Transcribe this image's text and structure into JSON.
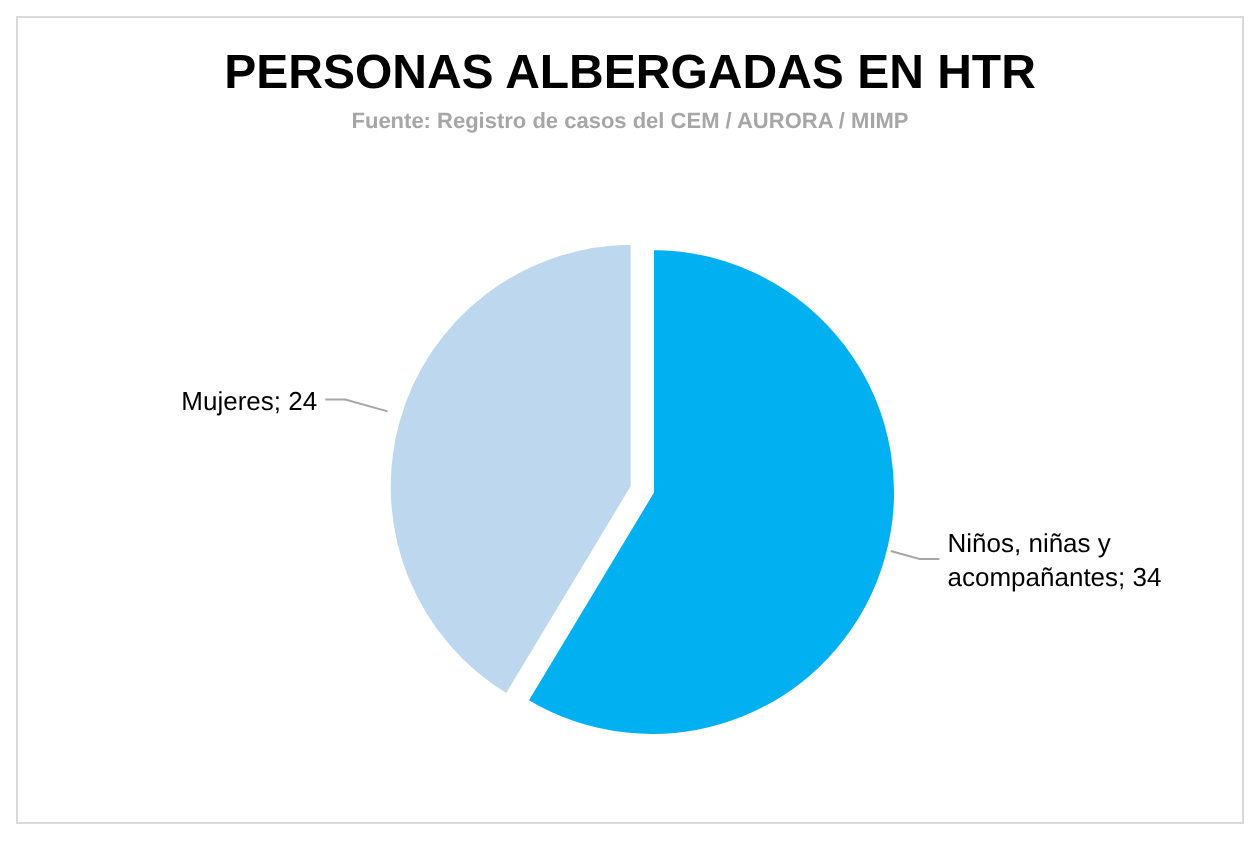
{
  "chart_data": {
    "type": "pie",
    "title": "PERSONAS ALBERGADAS EN HTR",
    "subtitle": "Fuente: Registro de casos del CEM / AURORA / MIMP",
    "categories": [
      "Niños, niñas y acompañantes",
      "Mujeres"
    ],
    "values": [
      34,
      24
    ],
    "colors": [
      "#00b0f0",
      "#bdd7ee"
    ],
    "value_labels": [
      "; 34",
      "; 24"
    ]
  }
}
